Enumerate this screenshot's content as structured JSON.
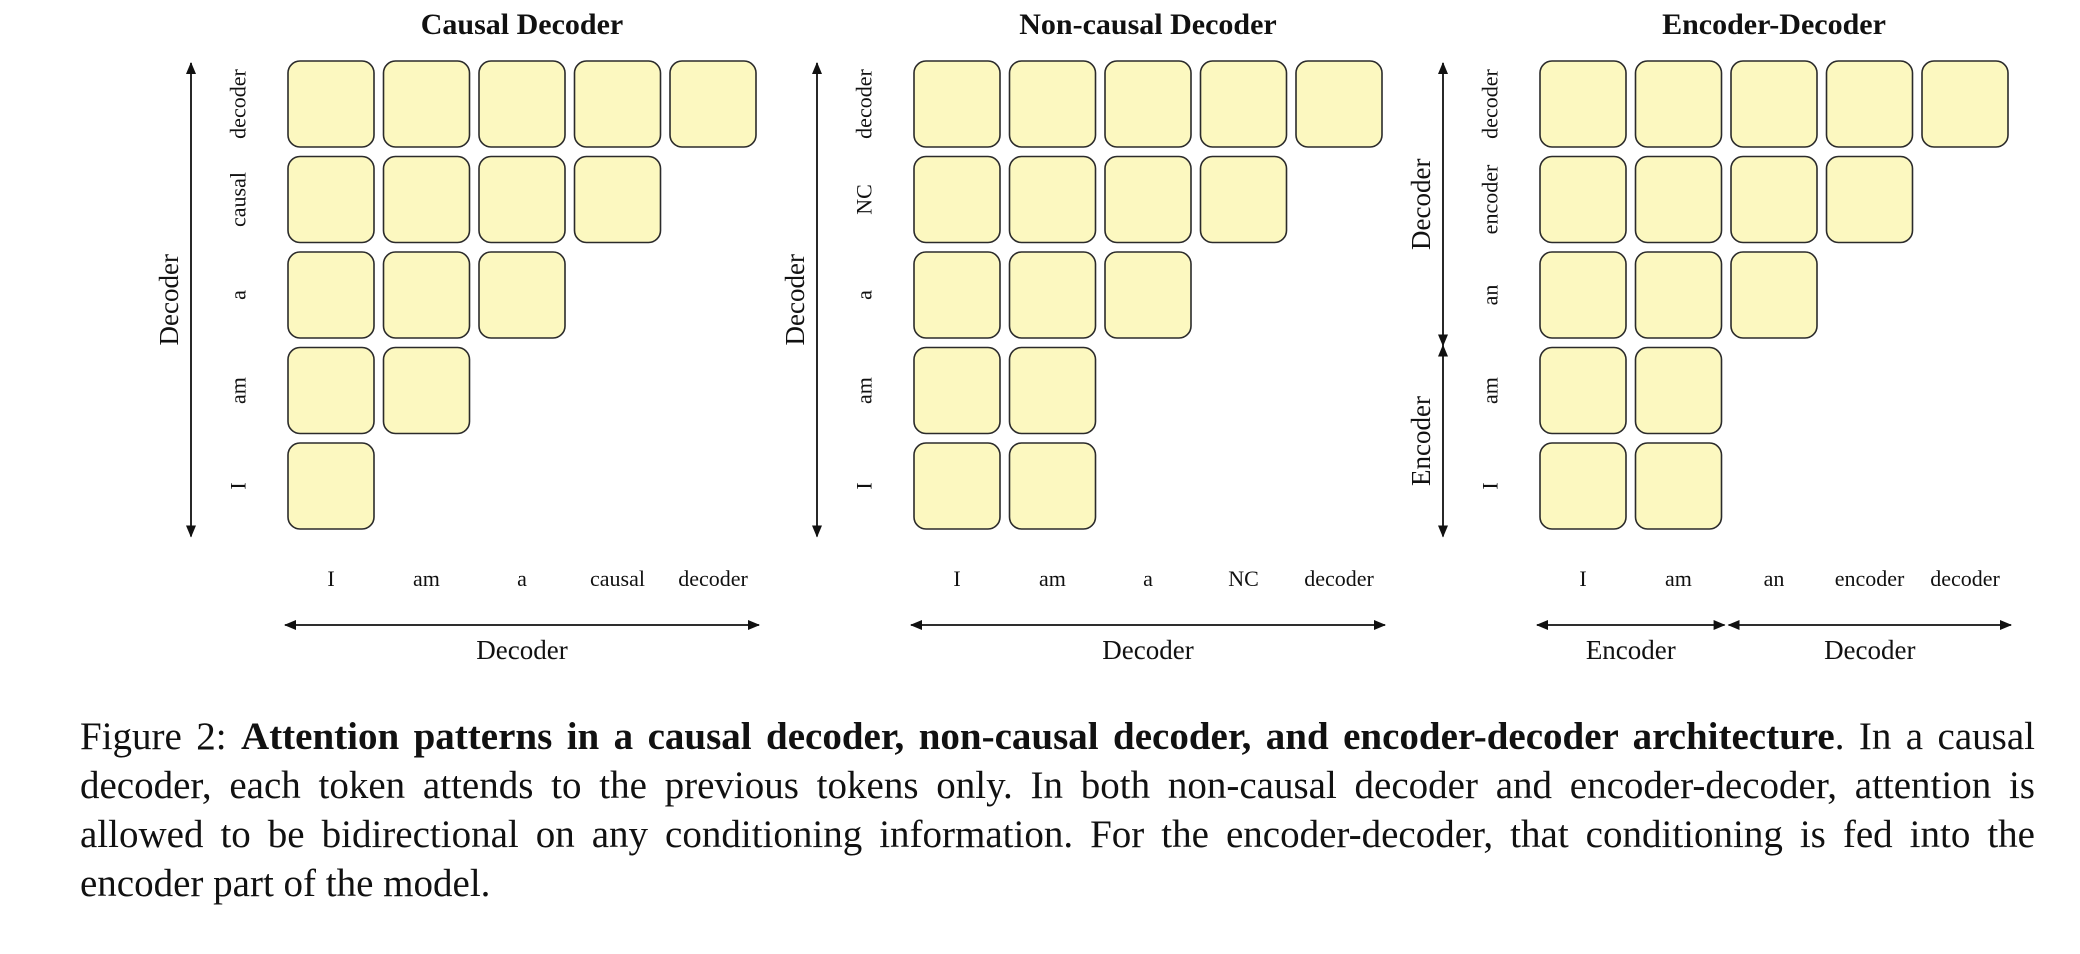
{
  "panels": [
    {
      "title": "Causal Decoder",
      "tokens": [
        "I",
        "am",
        "a",
        "causal",
        "decoder"
      ],
      "pattern": "causal",
      "left_axis": [
        {
          "label": "Decoder",
          "from": 0,
          "to": 5
        }
      ],
      "bottom_axis": [
        {
          "label": "Decoder",
          "from": 0,
          "to": 5
        }
      ]
    },
    {
      "title": "Non-causal Decoder",
      "tokens": [
        "I",
        "am",
        "a",
        "NC",
        "decoder"
      ],
      "pattern": "non-causal",
      "prefix_length": 2,
      "left_axis": [
        {
          "label": "Decoder",
          "from": 0,
          "to": 5
        }
      ],
      "bottom_axis": [
        {
          "label": "Decoder",
          "from": 0,
          "to": 5
        }
      ]
    },
    {
      "title": "Encoder-Decoder",
      "tokens": [
        "I",
        "am",
        "an",
        "encoder",
        "decoder"
      ],
      "pattern": "encoder-decoder",
      "prefix_length": 2,
      "left_axis": [
        {
          "label": "Encoder",
          "from": 0,
          "to": 2
        },
        {
          "label": "Decoder",
          "from": 2,
          "to": 5
        }
      ],
      "bottom_axis": [
        {
          "label": "Encoder",
          "from": 0,
          "to": 2
        },
        {
          "label": "Decoder",
          "from": 2,
          "to": 5
        }
      ]
    }
  ],
  "caption": {
    "figure_label": "Figure 2:",
    "bold_title": "Attention patterns in a causal decoder, non-causal decoder, and encoder-decoder architecture",
    "text": ". In a causal decoder, each token attends to the previous tokens only. In both non-causal decoder and encoder-decoder, attention is allowed to be bidirectional on any conditioning information. For the encoder-decoder, that conditioning is fed into the encoder part of the model."
  },
  "colors": {
    "cell_fill": "#fcf8c0",
    "cell_stroke": "#2b2b2b",
    "text": "#111111"
  }
}
